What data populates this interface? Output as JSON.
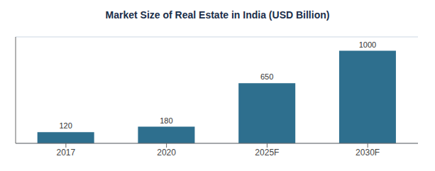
{
  "chart_data": {
    "type": "bar",
    "title": "Market Size of Real Estate in India (USD Billion)",
    "categories": [
      "2017",
      "2020",
      "2025F",
      "2030F"
    ],
    "values": [
      120,
      180,
      650,
      1000
    ],
    "color": "#2e6f8e",
    "ylim": [
      0,
      1150
    ],
    "yticks": [
      0,
      200,
      400,
      600,
      800,
      1000
    ],
    "grid": true,
    "data_labels": true,
    "tick_labels": "x"
  }
}
